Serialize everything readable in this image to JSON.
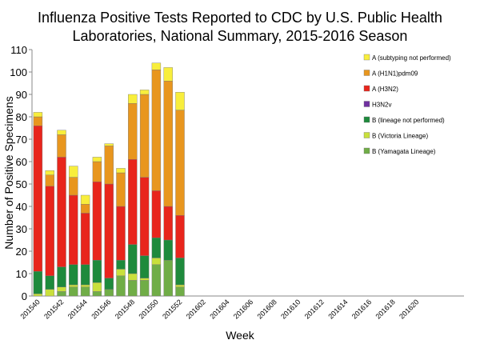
{
  "chart_data": {
    "type": "stacked_bar",
    "title": "Influenza Positive Tests Reported to CDC by U.S. Public Health Laboratories, National Summary, 2015-2016 Season",
    "x_label": "Week",
    "y_label": "Number of Positive Specimens",
    "categories": [
      "201540",
      null,
      "201542",
      null,
      "201544",
      null,
      "201546",
      null,
      "201548",
      null,
      "201550",
      null,
      "201552",
      null,
      "201602",
      null,
      "201604",
      null,
      "201606",
      null,
      "201608",
      null,
      "201610",
      null,
      "201612",
      null,
      "201614",
      null,
      "201616",
      null,
      "201618",
      null,
      "201620"
    ],
    "series": [
      {
        "name": "B (Yamagata Lineage)",
        "color": "#70ad47",
        "values": [
          0,
          0,
          2,
          4,
          4,
          2,
          3,
          9,
          7,
          7,
          14,
          16,
          4,
          null,
          null,
          null,
          null,
          null,
          null,
          null,
          null,
          null,
          null,
          null,
          null,
          null,
          null,
          null,
          null,
          null,
          null,
          null,
          null
        ]
      },
      {
        "name": "B (Victoria Lineage)",
        "color": "#c9e03c",
        "values": [
          1,
          3,
          2,
          1,
          1,
          4,
          0,
          3,
          3,
          1,
          3,
          0,
          1,
          null,
          null,
          null,
          null,
          null,
          null,
          null,
          null,
          null,
          null,
          null,
          null,
          null,
          null,
          null,
          null,
          null,
          null,
          null,
          null
        ]
      },
      {
        "name": "B (lineage not performed)",
        "color": "#1e8a3c",
        "values": [
          10,
          6,
          9,
          9,
          9,
          10,
          5,
          4,
          13,
          10,
          9,
          9,
          12,
          null,
          null,
          null,
          null,
          null,
          null,
          null,
          null,
          null,
          null,
          null,
          null,
          null,
          null,
          null,
          null,
          null,
          null,
          null,
          null
        ]
      },
      {
        "name": "H3N2v",
        "color": "#7030a0",
        "values": [
          0,
          0,
          0,
          0,
          0,
          0,
          0,
          0,
          0,
          0,
          0,
          0,
          0,
          null,
          null,
          null,
          null,
          null,
          null,
          null,
          null,
          null,
          null,
          null,
          null,
          null,
          null,
          null,
          null,
          null,
          null,
          null,
          null
        ]
      },
      {
        "name": "A (H3N2)",
        "color": "#e8251c",
        "values": [
          65,
          40,
          49,
          31,
          23,
          35,
          42,
          24,
          38,
          35,
          21,
          15,
          19,
          null,
          null,
          null,
          null,
          null,
          null,
          null,
          null,
          null,
          null,
          null,
          null,
          null,
          null,
          null,
          null,
          null,
          null,
          null,
          null
        ]
      },
      {
        "name": "A (H1N1)pdm09",
        "color": "#e8961e",
        "values": [
          4,
          5,
          10,
          8,
          4,
          9,
          17,
          15,
          25,
          37,
          54,
          56,
          47,
          null,
          null,
          null,
          null,
          null,
          null,
          null,
          null,
          null,
          null,
          null,
          null,
          null,
          null,
          null,
          null,
          null,
          null,
          null,
          null
        ]
      },
      {
        "name": "A (subtyping not performed)",
        "color": "#f8ee3c",
        "values": [
          2,
          2,
          2,
          5,
          4,
          2,
          1,
          2,
          4,
          2,
          3,
          6,
          8,
          null,
          null,
          null,
          null,
          null,
          null,
          null,
          null,
          null,
          null,
          null,
          null,
          null,
          null,
          null,
          null,
          null,
          null,
          null,
          null
        ]
      }
    ],
    "ylim": [
      0,
      110
    ],
    "yticks": [
      0,
      10,
      20,
      30,
      40,
      50,
      60,
      70,
      80,
      90,
      100,
      110
    ],
    "grid": false,
    "legend": "upper right"
  }
}
